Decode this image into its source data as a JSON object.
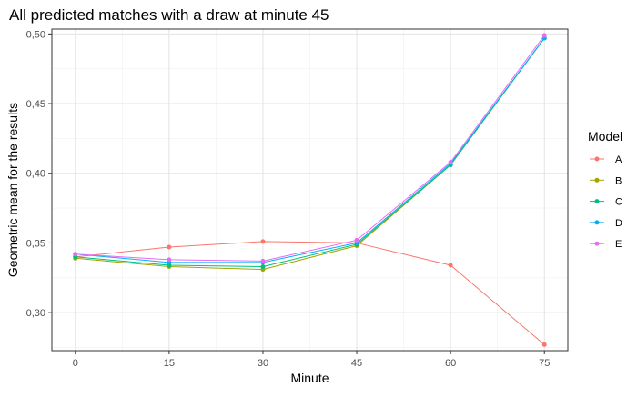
{
  "chart_data": {
    "type": "line",
    "title": "All predicted matches with a draw at minute 45",
    "xlabel": "Minute",
    "ylabel": "Geometric mean for the results",
    "x": [
      0,
      15,
      30,
      45,
      60,
      75
    ],
    "xticks": [
      0,
      15,
      30,
      45,
      60,
      75
    ],
    "xtick_labels": [
      "0",
      "15",
      "30",
      "45",
      "60",
      "75"
    ],
    "yticks": [
      0.3,
      0.35,
      0.4,
      0.45,
      0.5
    ],
    "ytick_labels": [
      "0,30",
      "0,35",
      "0,40",
      "0,45",
      "0,50"
    ],
    "xlim": [
      -3.75,
      78.75
    ],
    "ylim": [
      0.2727,
      0.5035
    ],
    "grid": true,
    "legend": {
      "title": "Model",
      "position": "right"
    },
    "series": [
      {
        "name": "A",
        "color": "#F8766D",
        "values": [
          0.34,
          0.347,
          0.351,
          0.35,
          0.334,
          0.277
        ]
      },
      {
        "name": "B",
        "color": "#A3A500",
        "values": [
          0.339,
          0.333,
          0.331,
          0.348,
          0.406,
          0.497
        ]
      },
      {
        "name": "C",
        "color": "#00BF7D",
        "values": [
          0.34,
          0.334,
          0.333,
          0.349,
          0.406,
          0.497
        ]
      },
      {
        "name": "D",
        "color": "#00B0F6",
        "values": [
          0.342,
          0.336,
          0.336,
          0.35,
          0.407,
          0.497
        ]
      },
      {
        "name": "E",
        "color": "#E76BF3",
        "values": [
          0.342,
          0.338,
          0.337,
          0.352,
          0.408,
          0.499
        ]
      }
    ]
  }
}
